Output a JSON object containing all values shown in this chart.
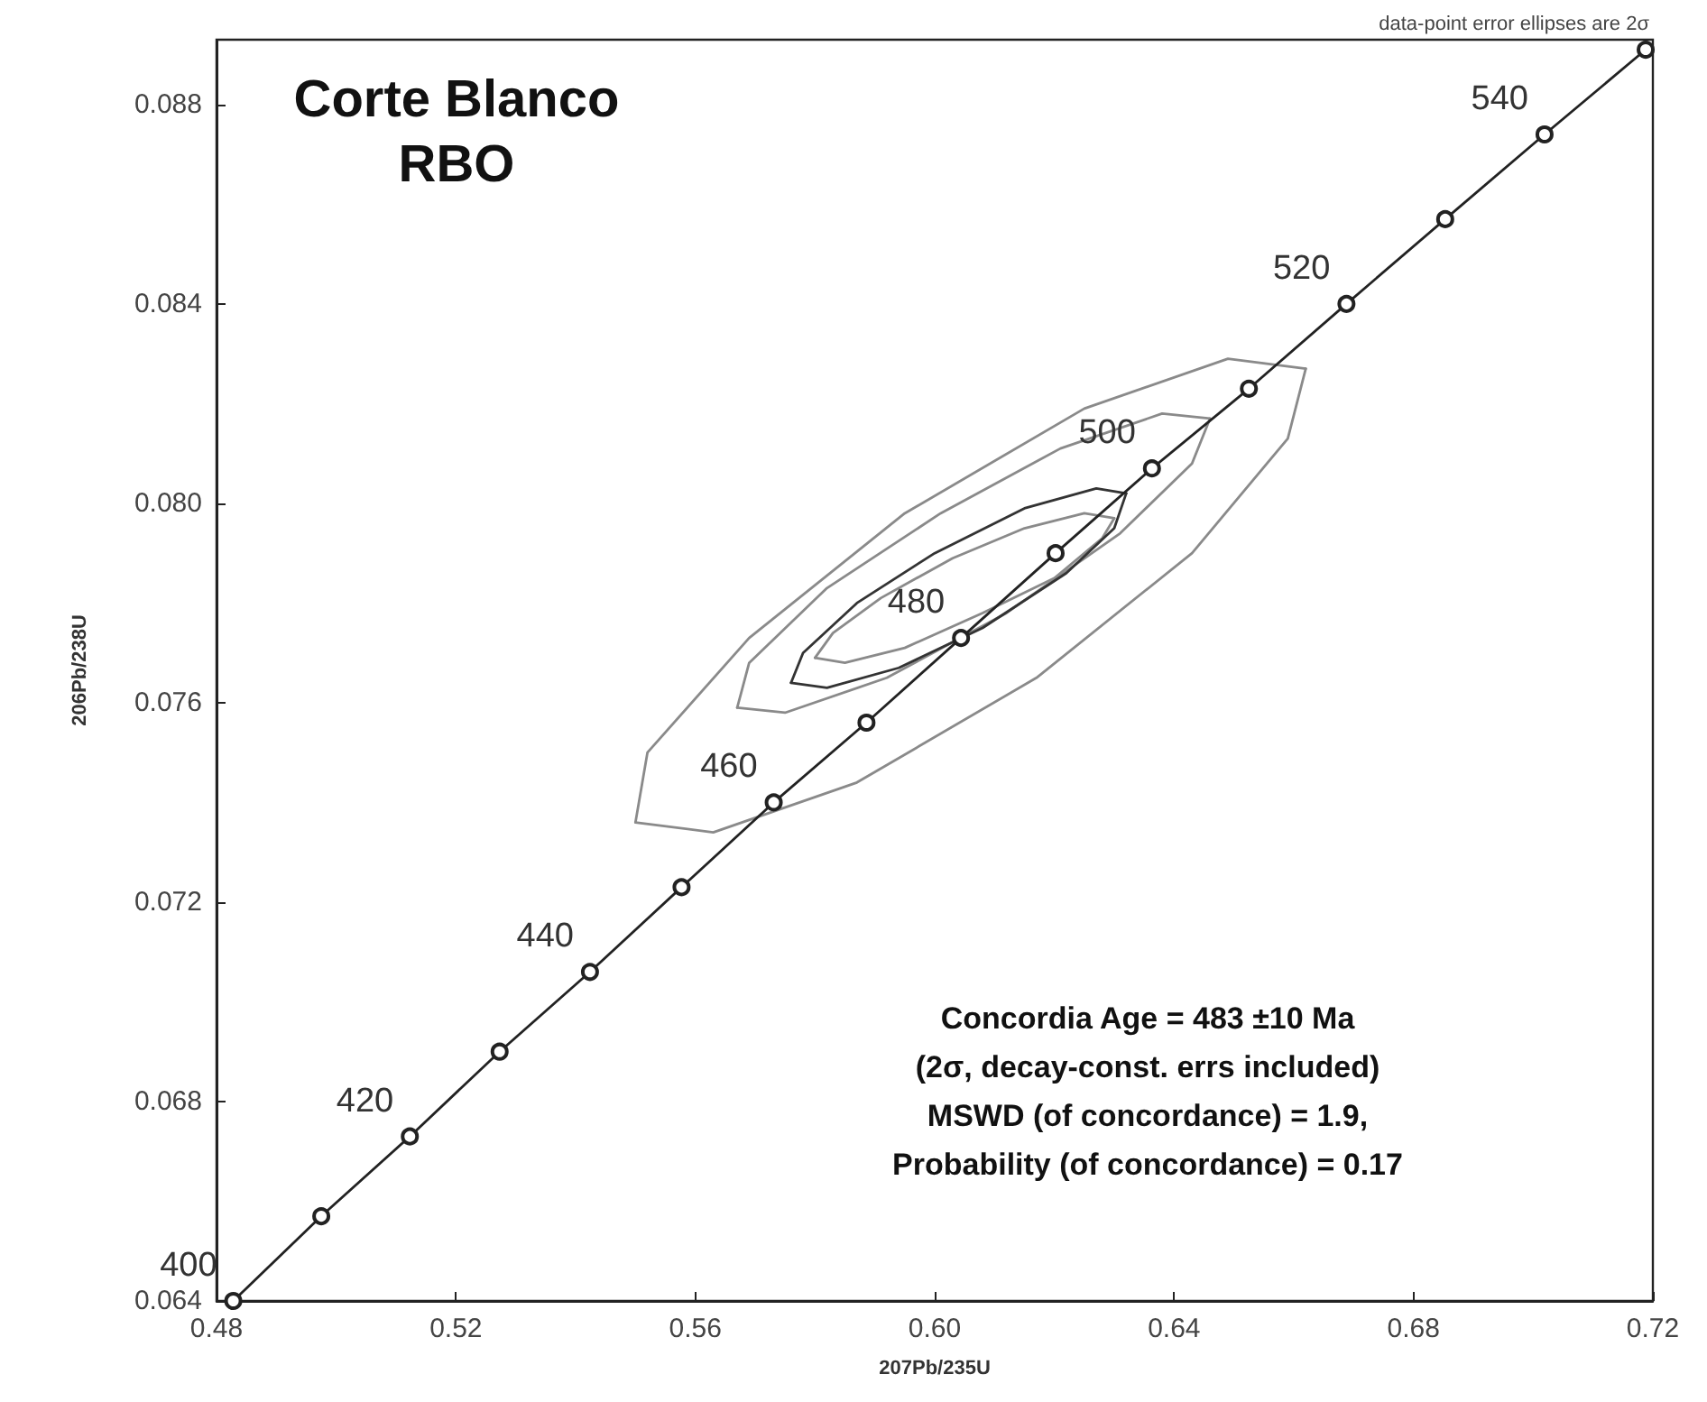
{
  "chart_data": {
    "type": "line",
    "title": "Corte Blanco",
    "subtitle": "RBO",
    "xlabel": "207Pb/235U",
    "ylabel": "206Pb/238U",
    "marker": "circle",
    "xlim": [
      0.48,
      0.72
    ],
    "ylim": [
      0.064,
      0.0893
    ],
    "xticks": [
      0.48,
      0.52,
      0.56,
      {
        "value": 0.6,
        "label": "0.60"
      },
      0.64,
      0.68,
      0.72
    ],
    "yticks": [
      0.064,
      0.068,
      0.072,
      0.076,
      {
        "value": 0.08,
        "label": "0.080"
      },
      0.084,
      0.088
    ],
    "series": [
      {
        "color": "#222222",
        "x": [
          0.4828,
          0.4975,
          0.5123,
          0.5273,
          0.5424,
          0.5577,
          0.5731,
          0.5886,
          0.6044,
          0.6202,
          0.6363,
          0.6525,
          0.6688,
          0.6853,
          0.7019,
          0.7188
        ],
        "values": [
          0.064,
          0.0657,
          0.0673,
          0.069,
          0.0706,
          0.0723,
          0.074,
          0.0756,
          0.0773,
          0.079,
          0.0807,
          0.0823,
          0.084,
          0.0857,
          0.0874,
          0.0891
        ]
      },
      {
        "color": "#8a8a8a",
        "marker": "none",
        "x": [
          0.55,
          0.552,
          0.569,
          0.595,
          0.625,
          0.649,
          0.662
        ],
        "values": [
          0.0736,
          0.075,
          0.0773,
          0.0798,
          0.0819,
          0.0829,
          0.0827
        ]
      },
      {
        "color": "#8a8a8a",
        "marker": "none",
        "x": [
          0.55,
          0.563,
          0.587,
          0.617,
          0.643,
          0.659,
          0.662
        ],
        "values": [
          0.0736,
          0.0734,
          0.0744,
          0.0765,
          0.079,
          0.0813,
          0.0827
        ]
      },
      {
        "color": "#8a8a8a",
        "marker": "none",
        "x": [
          0.567,
          0.569,
          0.582,
          0.601,
          0.621,
          0.638,
          0.646
        ],
        "values": [
          0.0759,
          0.0768,
          0.0783,
          0.0798,
          0.0811,
          0.0818,
          0.0817
        ]
      },
      {
        "color": "#8a8a8a",
        "marker": "none",
        "x": [
          0.567,
          0.575,
          0.592,
          0.612,
          0.631,
          0.643,
          0.646
        ],
        "values": [
          0.0759,
          0.0758,
          0.0765,
          0.0778,
          0.0794,
          0.0808,
          0.0817
        ]
      },
      {
        "color": "#8a8a8a",
        "marker": "none",
        "x": [
          0.58,
          0.583,
          0.591,
          0.603,
          0.615,
          0.625,
          0.63
        ],
        "values": [
          0.0769,
          0.0774,
          0.0781,
          0.0789,
          0.0795,
          0.0798,
          0.0797
        ]
      },
      {
        "color": "#8a8a8a",
        "marker": "none",
        "x": [
          0.58,
          0.585,
          0.595,
          0.608,
          0.62,
          0.628,
          0.63
        ],
        "values": [
          0.0769,
          0.0768,
          0.0771,
          0.0778,
          0.0785,
          0.0793,
          0.0797
        ]
      },
      {
        "color": "#333333",
        "marker": "none",
        "x": [
          0.576,
          0.578,
          0.587,
          0.6,
          0.615,
          0.627,
          0.632
        ],
        "values": [
          0.0764,
          0.077,
          0.078,
          0.079,
          0.0799,
          0.0803,
          0.0802
        ]
      },
      {
        "color": "#333333",
        "marker": "none",
        "x": [
          0.576,
          0.582,
          0.594,
          0.608,
          0.622,
          0.63,
          0.632
        ],
        "values": [
          0.0764,
          0.0763,
          0.0767,
          0.0775,
          0.0786,
          0.0795,
          0.0802
        ]
      }
    ],
    "annotations": [
      "data-point error ellipses are 2σ",
      "Concordia Age = 483 ±10 Ma",
      "(2σ, decay-const. errs included)",
      "MSWD (of concordance) = 1.9,",
      "Probability (of concordance) = 0.17",
      {
        "text": "400",
        "x": 0.4828,
        "y": 0.064
      },
      {
        "text": "420",
        "x": 0.5123,
        "y": 0.0673
      },
      {
        "text": "440",
        "x": 0.5424,
        "y": 0.0706
      },
      {
        "text": "460",
        "x": 0.5731,
        "y": 0.074
      },
      {
        "text": "480",
        "x": 0.6044,
        "y": 0.0773
      },
      {
        "text": "500",
        "x": 0.6363,
        "y": 0.0807
      },
      {
        "text": "520",
        "x": 0.6688,
        "y": 0.084
      },
      {
        "text": "540",
        "x": 0.7019,
        "y": 0.0874
      }
    ]
  }
}
